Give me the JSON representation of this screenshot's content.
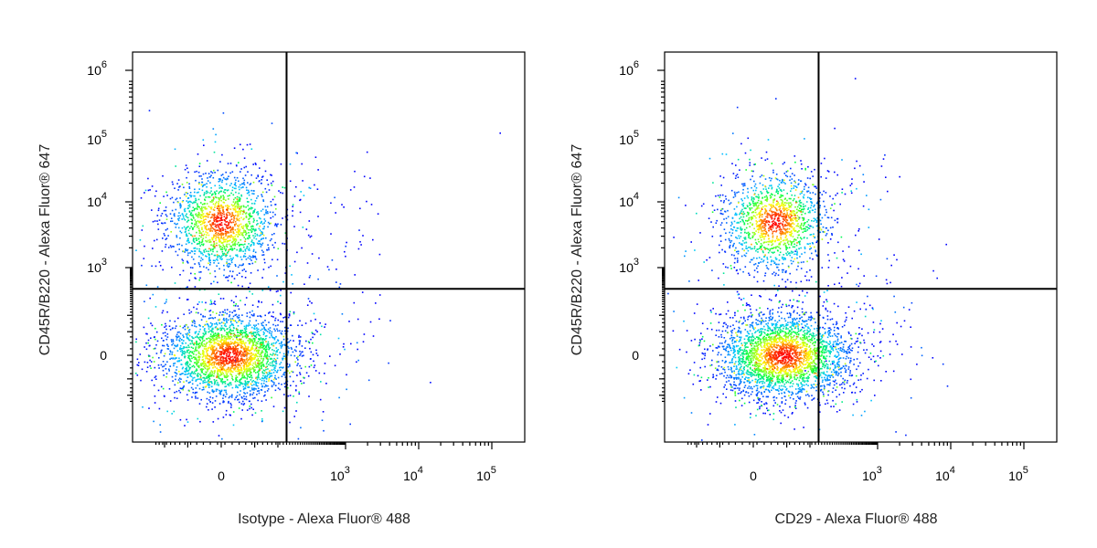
{
  "chart_data": [
    {
      "type": "scatter",
      "style": "density-colored flow cytometry dot plot",
      "xlabel": "Isotype - Alexa Fluor® 488",
      "ylabel": "CD45R/B220 - Alexa Fluor® 647",
      "x_scale": "biexponential",
      "y_scale": "biexponential",
      "xlim": [
        -300,
        100000
      ],
      "ylim": [
        -300,
        1000000
      ],
      "x_ticks": [
        {
          "base": "0",
          "exp": ""
        },
        {
          "base": "10",
          "exp": "3"
        },
        {
          "base": "10",
          "exp": "4"
        },
        {
          "base": "10",
          "exp": "5"
        }
      ],
      "y_ticks": [
        {
          "base": "0",
          "exp": ""
        },
        {
          "base": "10",
          "exp": "3"
        },
        {
          "base": "10",
          "exp": "4"
        },
        {
          "base": "10",
          "exp": "5"
        },
        {
          "base": "10",
          "exp": "6"
        }
      ],
      "quadrant_gate": {
        "x": 250,
        "y": 500
      },
      "colors": [
        "#0000ff",
        "#00c8ff",
        "#00ff40",
        "#ffff00",
        "#ff0000"
      ],
      "populations": [
        {
          "x_center": 0,
          "y_center": 5000,
          "count": 1600
        },
        {
          "x_center": 20,
          "y_center": 0,
          "count": 2600
        }
      ]
    },
    {
      "type": "scatter",
      "style": "density-colored flow cytometry dot plot",
      "xlabel": "CD29 - Alexa Fluor® 488",
      "ylabel": "CD45R/B220 - Alexa Fluor® 647",
      "x_scale": "biexponential",
      "y_scale": "biexponential",
      "xlim": [
        -300,
        100000
      ],
      "ylim": [
        -300,
        1000000
      ],
      "x_ticks": [
        {
          "base": "0",
          "exp": ""
        },
        {
          "base": "10",
          "exp": "3"
        },
        {
          "base": "10",
          "exp": "4"
        },
        {
          "base": "10",
          "exp": "5"
        }
      ],
      "y_ticks": [
        {
          "base": "0",
          "exp": ""
        },
        {
          "base": "10",
          "exp": "3"
        },
        {
          "base": "10",
          "exp": "4"
        },
        {
          "base": "10",
          "exp": "5"
        },
        {
          "base": "10",
          "exp": "6"
        }
      ],
      "quadrant_gate": {
        "x": 250,
        "y": 500
      },
      "colors": [
        "#0000ff",
        "#00c8ff",
        "#00ff40",
        "#ffff00",
        "#ff0000"
      ],
      "populations": [
        {
          "x_center": 60,
          "y_center": 5000,
          "count": 1400
        },
        {
          "x_center": 90,
          "y_center": 0,
          "count": 2800
        }
      ]
    }
  ]
}
